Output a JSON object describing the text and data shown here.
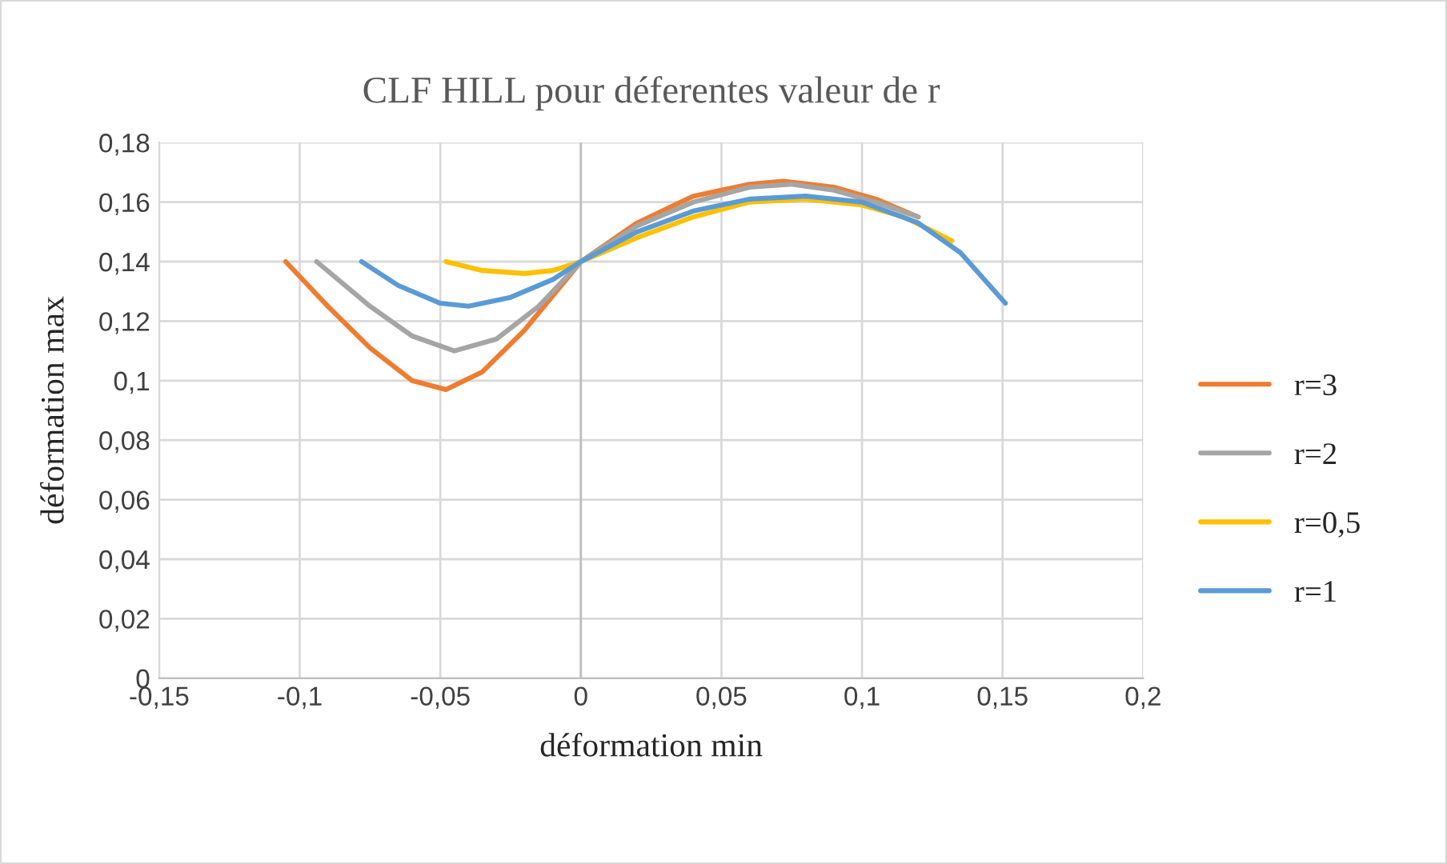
{
  "chart_data": {
    "type": "line",
    "title": "CLF HILL pour déferentes valeur de r",
    "xlabel": "déformation min",
    "ylabel": "déformation max",
    "series": [
      {
        "name": "r=3",
        "color": "#ed7d31",
        "x": [
          -0.105,
          -0.09,
          -0.075,
          -0.06,
          -0.048,
          -0.035,
          -0.02,
          0,
          0.02,
          0.04,
          0.06,
          0.072,
          0.09,
          0.105,
          0.12
        ],
        "values": [
          0.14,
          0.125,
          0.111,
          0.1,
          0.097,
          0.103,
          0.117,
          0.14,
          0.153,
          0.162,
          0.166,
          0.167,
          0.165,
          0.161,
          0.155
        ]
      },
      {
        "name": "r=2",
        "color": "#a5a5a5",
        "x": [
          -0.094,
          -0.075,
          -0.06,
          -0.045,
          -0.03,
          -0.015,
          0,
          0.02,
          0.04,
          0.06,
          0.075,
          0.09,
          0.105,
          0.12
        ],
        "values": [
          0.14,
          0.125,
          0.115,
          0.11,
          0.114,
          0.125,
          0.14,
          0.152,
          0.16,
          0.165,
          0.166,
          0.164,
          0.16,
          0.155
        ]
      },
      {
        "name": "r=0,5",
        "color": "#ffc000",
        "x": [
          -0.048,
          -0.035,
          -0.02,
          -0.01,
          0,
          0.02,
          0.04,
          0.06,
          0.08,
          0.1,
          0.115,
          0.132
        ],
        "values": [
          0.14,
          0.137,
          0.136,
          0.137,
          0.14,
          0.148,
          0.155,
          0.16,
          0.161,
          0.159,
          0.155,
          0.147
        ]
      },
      {
        "name": "r=1",
        "color": "#5b9bd5",
        "x": [
          -0.078,
          -0.065,
          -0.05,
          -0.04,
          -0.025,
          -0.01,
          0,
          0.02,
          0.04,
          0.06,
          0.08,
          0.1,
          0.12,
          0.135,
          0.151
        ],
        "values": [
          0.14,
          0.132,
          0.126,
          0.125,
          0.128,
          0.134,
          0.14,
          0.15,
          0.157,
          0.161,
          0.162,
          0.16,
          0.153,
          0.143,
          0.126
        ]
      }
    ],
    "xlim": [
      -0.15,
      0.2
    ],
    "xticks": [
      {
        "value": -0.15,
        "label": "-0,15"
      },
      {
        "value": -0.1,
        "label": "-0,1"
      },
      {
        "value": -0.05,
        "label": "-0,05"
      },
      0,
      {
        "value": 0.05,
        "label": "0,05"
      },
      {
        "value": 0.1,
        "label": "0,1"
      },
      {
        "value": 0.15,
        "label": "0,15"
      },
      {
        "value": 0.2,
        "label": "0,2"
      }
    ],
    "ylim": [
      0,
      0.18
    ],
    "yticks": [
      0,
      {
        "value": 0.02,
        "label": "0,02"
      },
      {
        "value": 0.04,
        "label": "0,04"
      },
      {
        "value": 0.06,
        "label": "0,06"
      },
      {
        "value": 0.08,
        "label": "0,08"
      },
      {
        "value": 0.1,
        "label": "0,1"
      },
      {
        "value": 0.12,
        "label": "0,12"
      },
      {
        "value": 0.14,
        "label": "0,14"
      },
      {
        "value": 0.16,
        "label": "0,16"
      },
      {
        "value": 0.18,
        "label": "0,18"
      }
    ],
    "grid": true,
    "legend": "right",
    "marker": "none",
    "line_style": "solid"
  }
}
